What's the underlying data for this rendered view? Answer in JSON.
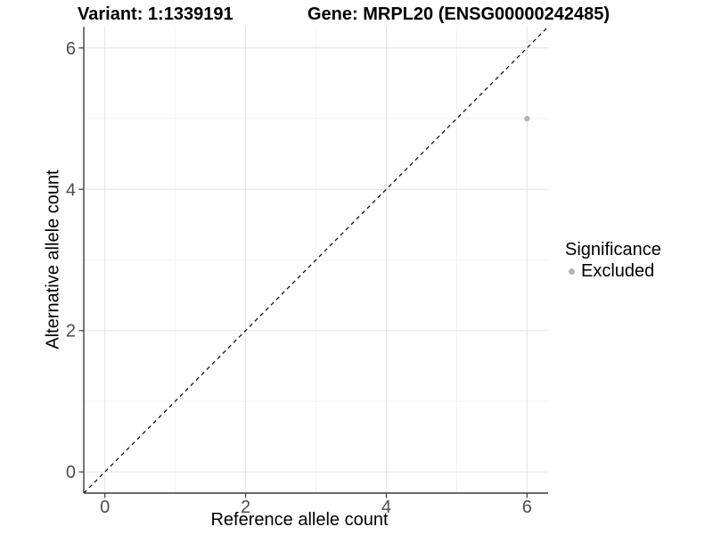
{
  "chart_data": {
    "type": "scatter",
    "title_variant": "Variant: 1:1339191",
    "title_gene": "Gene: MRPL20 (ENSG00000242485)",
    "xlabel": "Reference allele count",
    "ylabel": "Alternative allele count",
    "xlim": [
      -0.3,
      6.3
    ],
    "ylim": [
      -0.3,
      6.3
    ],
    "x_ticks": [
      0,
      2,
      4,
      6
    ],
    "y_ticks": [
      0,
      2,
      4,
      6
    ],
    "x_minor_ticks": [
      1,
      3,
      5
    ],
    "y_minor_ticks": [
      1,
      3,
      5
    ],
    "grid": "major+minor",
    "series": [
      {
        "name": "Excluded",
        "color": "#b4b4b4",
        "points": [
          {
            "x": 6,
            "y": 5
          }
        ]
      }
    ],
    "reference_line": {
      "shape": "identity y=x",
      "style": "dashed",
      "color": "#000000"
    },
    "legend": {
      "title": "Significance",
      "position": "right",
      "items": [
        {
          "label": "Excluded",
          "color": "#b4b4b4",
          "marker": "circle"
        }
      ]
    }
  },
  "colors": {
    "background": "#ffffff",
    "grid_major": "#e3e3e3",
    "grid_minor": "#f1f1f1",
    "axis_line": "#3c3c3c",
    "tick_label": "#4d4d4d",
    "text": "#000000"
  }
}
